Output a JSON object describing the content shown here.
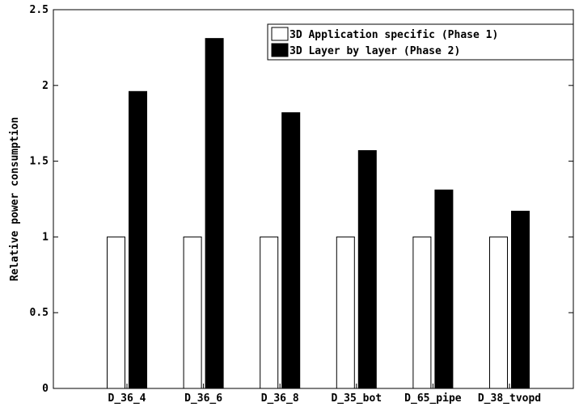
{
  "chart_data": {
    "type": "bar",
    "title": "",
    "xlabel": "",
    "ylabel": "Relative power consumption",
    "ylim": [
      0,
      2.5
    ],
    "yticks": [
      "0",
      "0.5",
      "1",
      "1.5",
      "2",
      "2.5"
    ],
    "categories": [
      "D_36_4",
      "D_36_6",
      "D_36_8",
      "D_35_bot",
      "D_65_pipe",
      "D_38_tvopd"
    ],
    "series": [
      {
        "name": "3D Application specific (Phase 1)",
        "values": [
          1,
          1,
          1,
          1,
          1,
          1
        ],
        "color": "#ffffff"
      },
      {
        "name": "3D Layer by layer (Phase 2)",
        "values": [
          1.96,
          2.31,
          1.82,
          1.57,
          1.31,
          1.17
        ],
        "color": "#000000"
      }
    ],
    "legend_position": "top-right",
    "grid": false
  }
}
